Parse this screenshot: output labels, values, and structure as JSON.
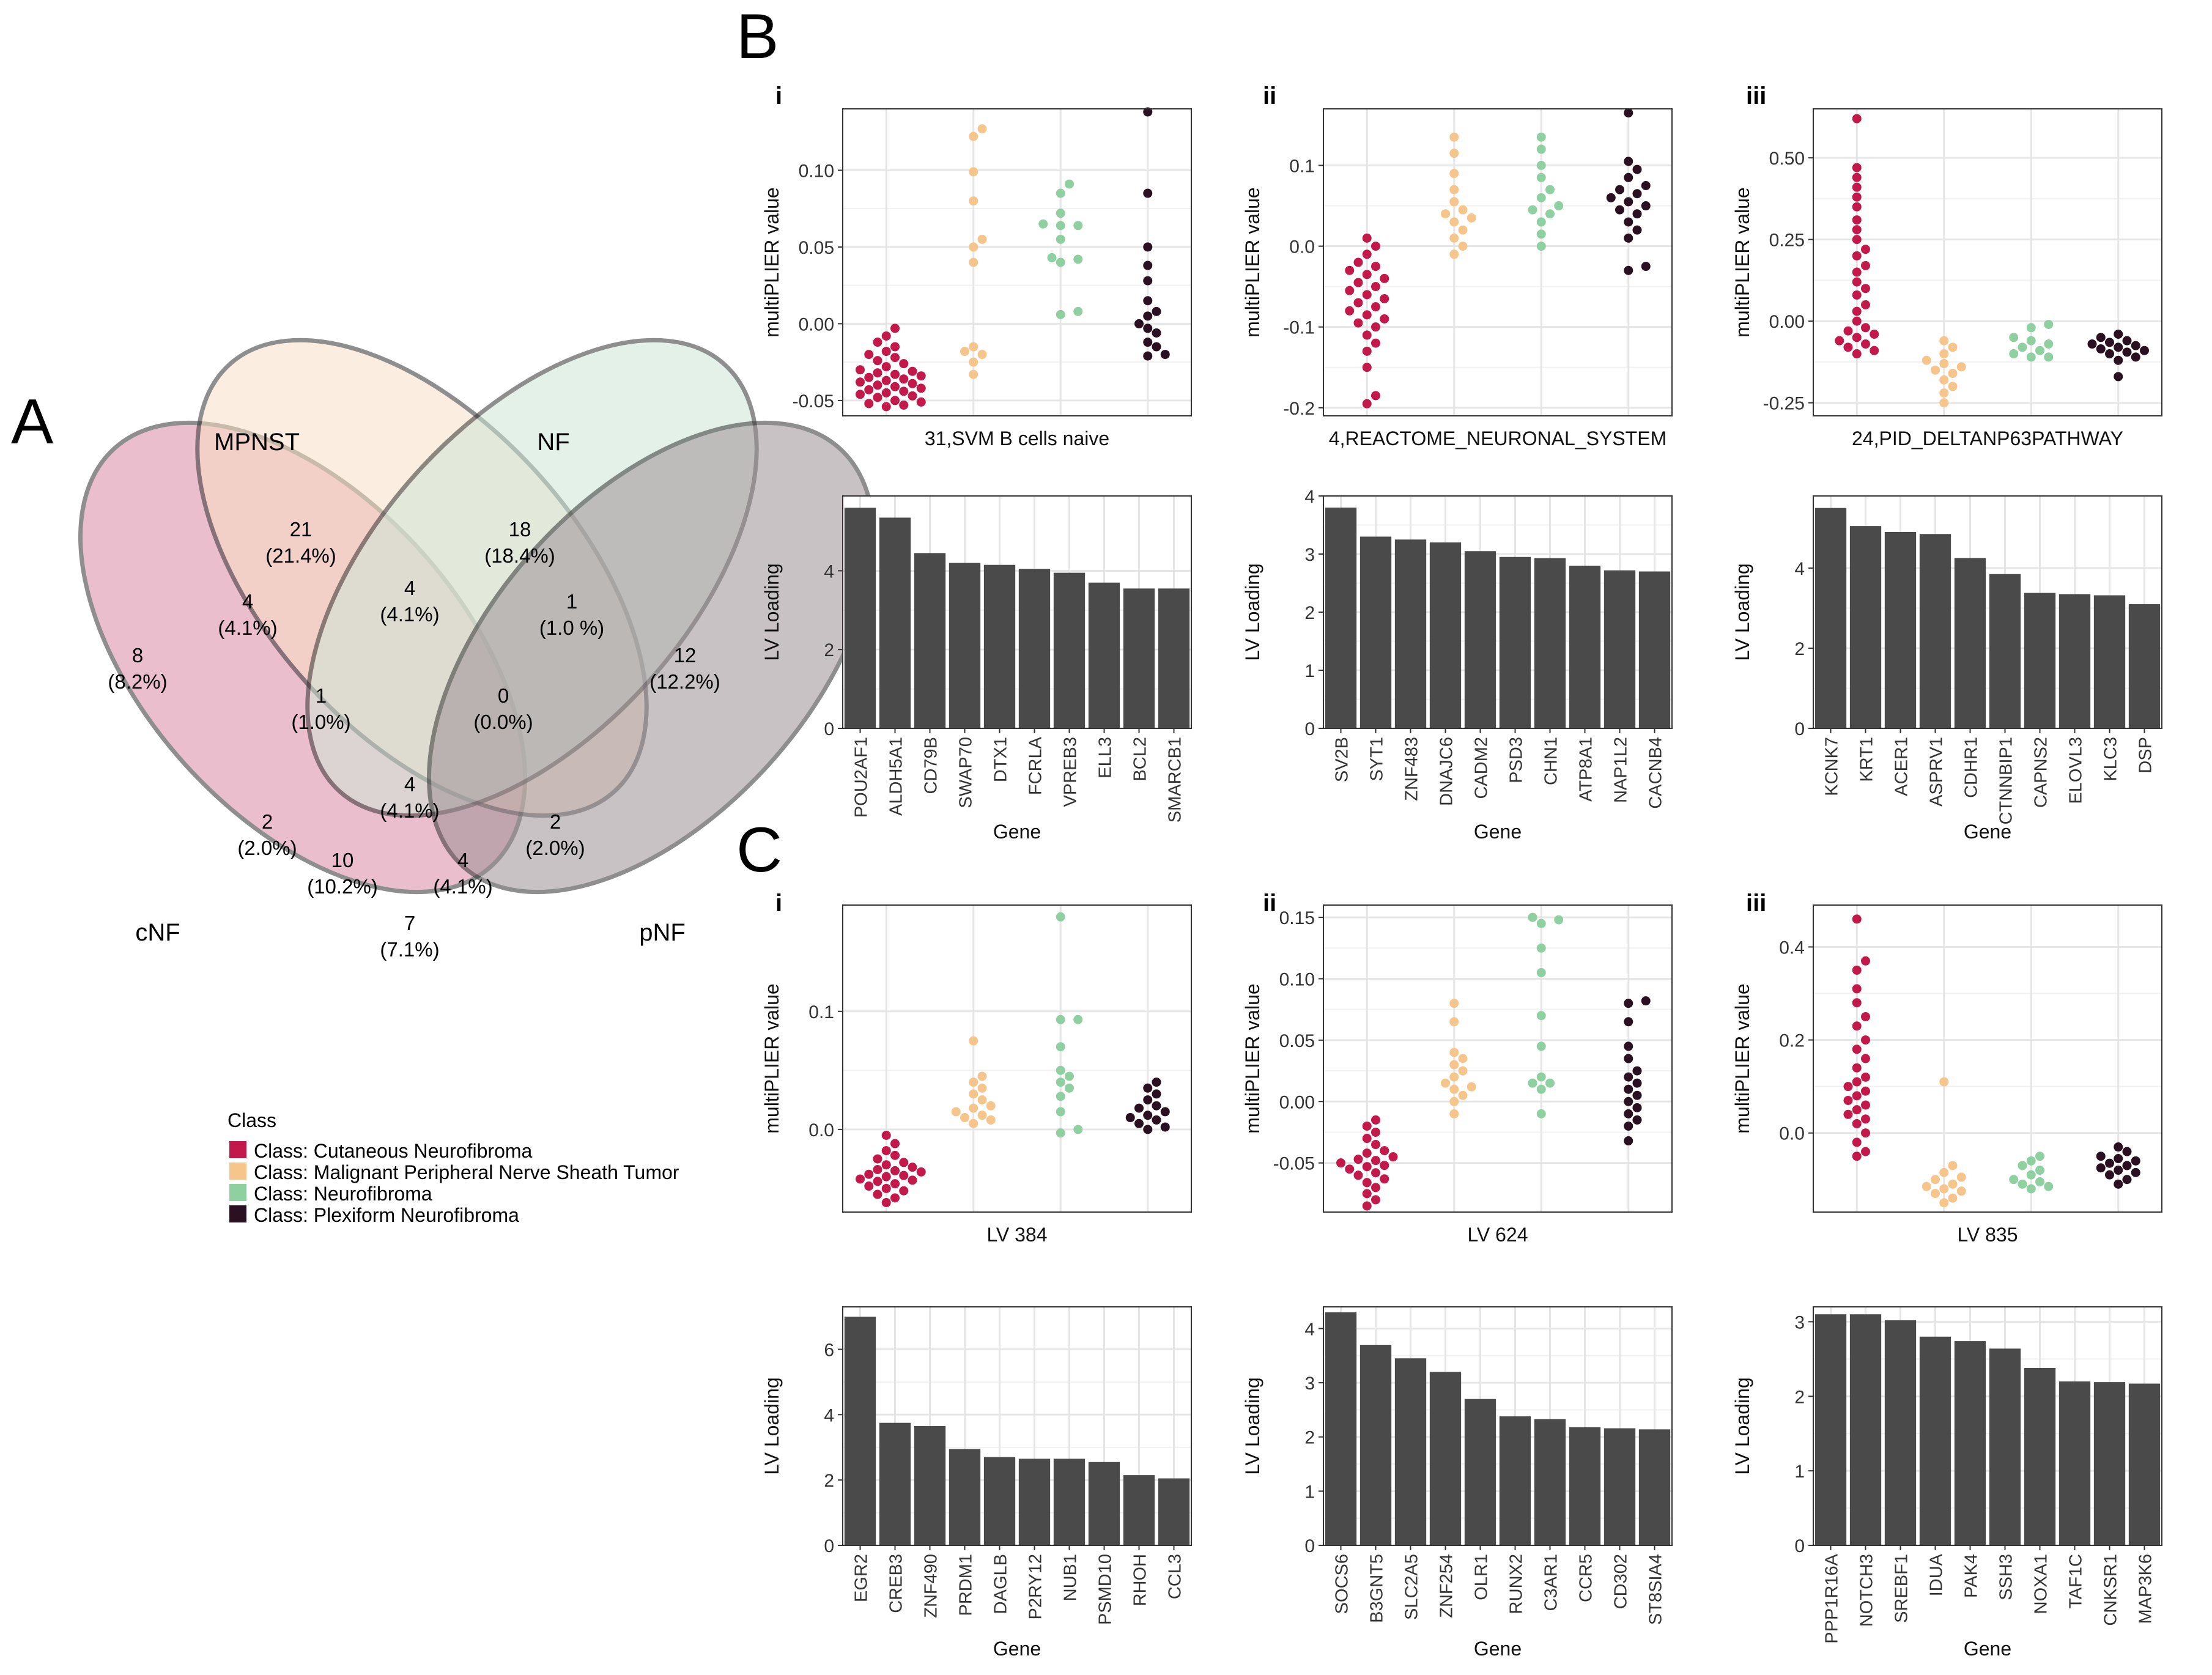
{
  "panel_letters": {
    "a": "A",
    "b": "B",
    "c": "C"
  },
  "sub_labels": [
    "i",
    "ii",
    "iii"
  ],
  "colors": {
    "cNF": "#c2184a",
    "MPNST": "#f6c58b",
    "NF": "#8fd0a0",
    "pNF": "#2a1020",
    "bar": "#4a4a4a",
    "grid": "#e6e6e6",
    "venn_cNF": "#d98aa3",
    "venn_MPNST": "#f9e0c6",
    "venn_NF": "#cfe6d8",
    "venn_pNF": "#9e9197"
  },
  "venn": {
    "sets": {
      "mpnst": "MPNST",
      "nf": "NF",
      "cnf": "cNF",
      "pnf": "pNF"
    },
    "regions": [
      {
        "count": "21",
        "pct": "(21.4%)"
      },
      {
        "count": "18",
        "pct": "(18.4%)"
      },
      {
        "count": "4",
        "pct": "(4.1%)"
      },
      {
        "count": "4",
        "pct": "(4.1%)"
      },
      {
        "count": "1",
        "pct": "(1.0 %)"
      },
      {
        "count": "8",
        "pct": "(8.2%)"
      },
      {
        "count": "12",
        "pct": "(12.2%)"
      },
      {
        "count": "1",
        "pct": "(1.0%)"
      },
      {
        "count": "0",
        "pct": "(0.0%)"
      },
      {
        "count": "4",
        "pct": "(4.1%)"
      },
      {
        "count": "2",
        "pct": "(2.0%)"
      },
      {
        "count": "2",
        "pct": "(2.0%)"
      },
      {
        "count": "10",
        "pct": "(10.2%)"
      },
      {
        "count": "4",
        "pct": "(4.1%)"
      },
      {
        "count": "7",
        "pct": "(7.1%)"
      }
    ]
  },
  "legend": {
    "title": "Class",
    "items": [
      "Class: Cutaneous Neurofibroma",
      "Class: Malignant Peripheral Nerve Sheath Tumor",
      "Class: Neurofibroma",
      "Class: Plexiform Neurofibroma"
    ]
  },
  "chart_data": [
    {
      "id": "B-i-swarm",
      "type": "scatter",
      "panel": "B",
      "sub": "i",
      "title": "",
      "xlabel": "31,SVM B cells naive",
      "ylabel": "multiPLIER value",
      "ylim": [
        -0.06,
        0.14
      ],
      "yticks": [
        -0.05,
        0.0,
        0.05,
        0.1
      ],
      "ytick_labels": [
        "-0.05",
        "0.00",
        "0.05",
        "0.10"
      ],
      "groups": [
        {
          "name": "Cutaneous Neurofibroma",
          "values": [
            -0.003,
            -0.008,
            -0.012,
            -0.015,
            -0.018,
            -0.02,
            -0.022,
            -0.024,
            -0.026,
            -0.028,
            -0.03,
            -0.031,
            -0.032,
            -0.033,
            -0.034,
            -0.035,
            -0.036,
            -0.037,
            -0.038,
            -0.039,
            -0.04,
            -0.041,
            -0.042,
            -0.043,
            -0.044,
            -0.045,
            -0.046,
            -0.047,
            -0.048,
            -0.05,
            -0.051,
            -0.052,
            -0.053,
            -0.054
          ]
        },
        {
          "name": "Malignant Peripheral Nerve Sheath Tumor",
          "values": [
            0.127,
            0.122,
            0.099,
            0.08,
            0.055,
            0.05,
            0.04,
            -0.015,
            -0.018,
            -0.02,
            -0.025,
            -0.033
          ]
        },
        {
          "name": "Neurofibroma",
          "values": [
            0.091,
            0.085,
            0.072,
            0.065,
            0.064,
            0.064,
            0.055,
            0.043,
            0.042,
            0.04,
            0.008,
            0.006
          ]
        },
        {
          "name": "Plexiform Neurofibroma",
          "values": [
            0.138,
            0.085,
            0.05,
            0.038,
            0.028,
            0.015,
            0.008,
            0.005,
            0.0,
            -0.003,
            -0.006,
            -0.012,
            -0.015,
            -0.02,
            -0.021
          ]
        }
      ]
    },
    {
      "id": "B-ii-swarm",
      "type": "scatter",
      "panel": "B",
      "sub": "ii",
      "title": "",
      "xlabel": "4,REACTOME_NEURONAL_SYSTEM",
      "ylabel": "multiPLIER value",
      "ylim": [
        -0.21,
        0.17
      ],
      "yticks": [
        -0.2,
        -0.1,
        0.0,
        0.1
      ],
      "ytick_labels": [
        "-0.2",
        "-0.1",
        "0.0",
        "0.1"
      ],
      "groups": [
        {
          "name": "Cutaneous Neurofibroma",
          "values": [
            0.01,
            0.0,
            -0.01,
            -0.02,
            -0.025,
            -0.03,
            -0.035,
            -0.04,
            -0.045,
            -0.05,
            -0.055,
            -0.06,
            -0.065,
            -0.07,
            -0.075,
            -0.08,
            -0.085,
            -0.09,
            -0.095,
            -0.1,
            -0.11,
            -0.12,
            -0.13,
            -0.15,
            -0.185,
            -0.195
          ]
        },
        {
          "name": "Malignant Peripheral Nerve Sheath Tumor",
          "values": [
            0.135,
            0.115,
            0.09,
            0.07,
            0.055,
            0.045,
            0.04,
            0.035,
            0.03,
            0.02,
            0.01,
            0.0,
            -0.01
          ]
        },
        {
          "name": "Neurofibroma",
          "values": [
            0.135,
            0.12,
            0.1,
            0.085,
            0.07,
            0.06,
            0.05,
            0.045,
            0.04,
            0.03,
            0.015,
            0.0
          ]
        },
        {
          "name": "Plexiform Neurofibroma",
          "values": [
            0.165,
            0.105,
            0.095,
            0.085,
            0.075,
            0.07,
            0.065,
            0.06,
            0.055,
            0.05,
            0.045,
            0.04,
            0.03,
            0.02,
            0.01,
            -0.025,
            -0.03
          ]
        }
      ]
    },
    {
      "id": "B-iii-swarm",
      "type": "scatter",
      "panel": "B",
      "sub": "iii",
      "title": "",
      "xlabel": "24,PID_DELTANP63PATHWAY",
      "ylabel": "multiPLIER value",
      "ylim": [
        -0.29,
        0.65
      ],
      "yticks": [
        -0.25,
        0.0,
        0.25,
        0.5
      ],
      "ytick_labels": [
        "-0.25",
        "0.00",
        "0.25",
        "0.50"
      ],
      "groups": [
        {
          "name": "Cutaneous Neurofibroma",
          "values": [
            0.62,
            0.47,
            0.44,
            0.41,
            0.38,
            0.35,
            0.31,
            0.28,
            0.25,
            0.22,
            0.2,
            0.17,
            0.15,
            0.12,
            0.1,
            0.08,
            0.05,
            0.03,
            0.0,
            -0.02,
            -0.04,
            -0.06,
            -0.08,
            -0.09,
            -0.1,
            -0.03,
            -0.05,
            -0.07
          ]
        },
        {
          "name": "Malignant Peripheral Nerve Sheath Tumor",
          "values": [
            -0.06,
            -0.08,
            -0.1,
            -0.12,
            -0.13,
            -0.14,
            -0.15,
            -0.16,
            -0.18,
            -0.2,
            -0.22,
            -0.25
          ]
        },
        {
          "name": "Neurofibroma",
          "values": [
            -0.01,
            -0.02,
            -0.05,
            -0.06,
            -0.07,
            -0.08,
            -0.09,
            -0.1,
            -0.11,
            -0.11
          ]
        },
        {
          "name": "Plexiform Neurofibroma",
          "values": [
            -0.04,
            -0.05,
            -0.06,
            -0.065,
            -0.07,
            -0.075,
            -0.08,
            -0.085,
            -0.09,
            -0.095,
            -0.1,
            -0.11,
            -0.12,
            -0.17
          ]
        }
      ]
    },
    {
      "id": "B-i-bar",
      "type": "bar",
      "panel": "B",
      "sub": "i",
      "xlabel": "Gene",
      "ylabel": "LV Loading",
      "ylim": [
        0,
        5.9
      ],
      "yticks": [
        0,
        2,
        4
      ],
      "ytick_labels": [
        "0",
        "2",
        "4"
      ],
      "categories": [
        "POU2AF1",
        "ALDH5A1",
        "CD79B",
        "SWAP70",
        "DTX1",
        "FCRLA",
        "VPREB3",
        "ELL3",
        "BCL2",
        "SMARCB1"
      ],
      "values": [
        5.6,
        5.35,
        4.45,
        4.2,
        4.15,
        4.05,
        3.95,
        3.7,
        3.55,
        3.55
      ]
    },
    {
      "id": "B-ii-bar",
      "type": "bar",
      "panel": "B",
      "sub": "ii",
      "xlabel": "Gene",
      "ylabel": "LV Loading",
      "ylim": [
        0,
        4
      ],
      "yticks": [
        0,
        1,
        2,
        3,
        4
      ],
      "ytick_labels": [
        "0",
        "1",
        "2",
        "3",
        "4"
      ],
      "categories": [
        "SV2B",
        "SYT1",
        "ZNF483",
        "DNAJC6",
        "CADM2",
        "PSD3",
        "CHN1",
        "ATP8A1",
        "NAP1L2",
        "CACNB4"
      ],
      "values": [
        3.8,
        3.3,
        3.25,
        3.2,
        3.05,
        2.95,
        2.93,
        2.8,
        2.72,
        2.7
      ]
    },
    {
      "id": "B-iii-bar",
      "type": "bar",
      "panel": "B",
      "sub": "iii",
      "xlabel": "Gene",
      "ylabel": "LV Loading",
      "ylim": [
        0,
        5.8
      ],
      "yticks": [
        0,
        2,
        4
      ],
      "ytick_labels": [
        "0",
        "2",
        "4"
      ],
      "categories": [
        "KCNK7",
        "KRT1",
        "ACER1",
        "ASPRV1",
        "CDHR1",
        "CTNNBIP1",
        "CAPNS2",
        "ELOVL3",
        "KLC3",
        "DSP"
      ],
      "values": [
        5.5,
        5.05,
        4.9,
        4.85,
        4.25,
        3.85,
        3.38,
        3.35,
        3.32,
        3.1
      ]
    },
    {
      "id": "C-i-swarm",
      "type": "scatter",
      "panel": "C",
      "sub": "i",
      "title": "",
      "xlabel": "LV 384",
      "ylabel": "multiPLIER value",
      "ylim": [
        -0.07,
        0.19
      ],
      "yticks": [
        0.0,
        0.1
      ],
      "ytick_labels": [
        "0.0",
        "0.1"
      ],
      "groups": [
        {
          "name": "Cutaneous Neurofibroma",
          "values": [
            -0.005,
            -0.012,
            -0.018,
            -0.022,
            -0.025,
            -0.028,
            -0.03,
            -0.032,
            -0.034,
            -0.036,
            -0.038,
            -0.04,
            -0.042,
            -0.044,
            -0.046,
            -0.048,
            -0.05,
            -0.052,
            -0.055,
            -0.058,
            -0.062,
            -0.035,
            -0.039,
            -0.043
          ]
        },
        {
          "name": "Malignant Peripheral Nerve Sheath Tumor",
          "values": [
            0.075,
            0.045,
            0.04,
            0.035,
            0.03,
            0.025,
            0.02,
            0.018,
            0.015,
            0.012,
            0.01,
            0.008,
            0.005
          ]
        },
        {
          "name": "Neurofibroma",
          "values": [
            0.18,
            0.093,
            0.093,
            0.07,
            0.05,
            0.045,
            0.04,
            0.035,
            0.028,
            0.015,
            0.0,
            -0.003
          ]
        },
        {
          "name": "Plexiform Neurofibroma",
          "values": [
            0.04,
            0.035,
            0.03,
            0.025,
            0.02,
            0.018,
            0.015,
            0.012,
            0.01,
            0.008,
            0.005,
            0.002,
            0.0
          ]
        }
      ]
    },
    {
      "id": "C-ii-swarm",
      "type": "scatter",
      "panel": "C",
      "sub": "ii",
      "title": "",
      "xlabel": "LV 624",
      "ylabel": "multiPLIER value",
      "ylim": [
        -0.09,
        0.16
      ],
      "yticks": [
        -0.05,
        0.0,
        0.05,
        0.1,
        0.15
      ],
      "ytick_labels": [
        "-0.05",
        "0.00",
        "0.05",
        "0.10",
        "0.15"
      ],
      "groups": [
        {
          "name": "Cutaneous Neurofibroma",
          "values": [
            -0.015,
            -0.02,
            -0.025,
            -0.03,
            -0.035,
            -0.04,
            -0.042,
            -0.045,
            -0.048,
            -0.05,
            -0.052,
            -0.055,
            -0.058,
            -0.06,
            -0.063,
            -0.066,
            -0.07,
            -0.075,
            -0.08,
            -0.085,
            -0.047,
            -0.053
          ]
        },
        {
          "name": "Malignant Peripheral Nerve Sheath Tumor",
          "values": [
            0.08,
            0.065,
            0.04,
            0.035,
            0.03,
            0.025,
            0.02,
            0.015,
            0.012,
            0.01,
            0.005,
            0.0,
            -0.01
          ]
        },
        {
          "name": "Neurofibroma",
          "values": [
            0.15,
            0.148,
            0.145,
            0.125,
            0.105,
            0.07,
            0.045,
            0.02,
            0.015,
            0.015,
            0.01,
            -0.01
          ]
        },
        {
          "name": "Plexiform Neurofibroma",
          "values": [
            0.082,
            0.08,
            0.065,
            0.045,
            0.035,
            0.025,
            0.02,
            0.015,
            0.01,
            0.005,
            0.0,
            -0.005,
            -0.01,
            -0.015,
            -0.02,
            -0.032
          ]
        }
      ]
    },
    {
      "id": "C-iii-swarm",
      "type": "scatter",
      "panel": "C",
      "sub": "iii",
      "title": "",
      "xlabel": "LV 835",
      "ylabel": "multiPLIER value",
      "ylim": [
        -0.17,
        0.49
      ],
      "yticks": [
        0.0,
        0.2,
        0.4
      ],
      "ytick_labels": [
        "0.0",
        "0.2",
        "0.4"
      ],
      "groups": [
        {
          "name": "Cutaneous Neurofibroma",
          "values": [
            0.46,
            0.37,
            0.35,
            0.31,
            0.28,
            0.25,
            0.23,
            0.2,
            0.18,
            0.16,
            0.14,
            0.12,
            0.11,
            0.1,
            0.09,
            0.08,
            0.07,
            0.06,
            0.05,
            0.04,
            0.03,
            0.02,
            0.0,
            -0.02,
            -0.04,
            -0.05
          ]
        },
        {
          "name": "Malignant Peripheral Nerve Sheath Tumor",
          "values": [
            0.11,
            -0.07,
            -0.085,
            -0.095,
            -0.1,
            -0.11,
            -0.115,
            -0.12,
            -0.125,
            -0.13,
            -0.14,
            -0.15
          ]
        },
        {
          "name": "Neurofibroma",
          "values": [
            -0.05,
            -0.06,
            -0.07,
            -0.08,
            -0.09,
            -0.1,
            -0.105,
            -0.11,
            -0.115,
            -0.12
          ]
        },
        {
          "name": "Plexiform Neurofibroma",
          "values": [
            -0.03,
            -0.04,
            -0.05,
            -0.055,
            -0.06,
            -0.065,
            -0.07,
            -0.075,
            -0.08,
            -0.085,
            -0.09,
            -0.1,
            -0.11
          ]
        }
      ]
    },
    {
      "id": "C-i-bar",
      "type": "bar",
      "panel": "C",
      "sub": "i",
      "xlabel": "Gene",
      "ylabel": "LV Loading",
      "ylim": [
        0,
        7.3
      ],
      "yticks": [
        0,
        2,
        4,
        6
      ],
      "ytick_labels": [
        "0",
        "2",
        "4",
        "6"
      ],
      "categories": [
        "EGR2",
        "CREB3",
        "ZNF490",
        "PRDM1",
        "DAGLB",
        "P2RY12",
        "NUB1",
        "PSMD10",
        "RHOH",
        "CCL3"
      ],
      "values": [
        7.0,
        3.75,
        3.65,
        2.95,
        2.7,
        2.65,
        2.65,
        2.55,
        2.15,
        2.05
      ]
    },
    {
      "id": "C-ii-bar",
      "type": "bar",
      "panel": "C",
      "sub": "ii",
      "xlabel": "Gene",
      "ylabel": "LV Loading",
      "ylim": [
        0,
        4.4
      ],
      "yticks": [
        0,
        1,
        2,
        3,
        4
      ],
      "ytick_labels": [
        "0",
        "1",
        "2",
        "3",
        "4"
      ],
      "categories": [
        "SOCS6",
        "B3GNT5",
        "SLC2A5",
        "ZNF254",
        "OLR1",
        "RUNX2",
        "C3AR1",
        "CCR5",
        "CD302",
        "ST8SIA4"
      ],
      "values": [
        4.3,
        3.7,
        3.45,
        3.2,
        2.7,
        2.38,
        2.33,
        2.18,
        2.16,
        2.14
      ]
    },
    {
      "id": "C-iii-bar",
      "type": "bar",
      "panel": "C",
      "sub": "iii",
      "xlabel": "Gene",
      "ylabel": "LV Loading",
      "ylim": [
        0,
        3.2
      ],
      "yticks": [
        0,
        1,
        2,
        3
      ],
      "ytick_labels": [
        "0",
        "1",
        "2",
        "3"
      ],
      "categories": [
        "PPP1R16A",
        "NOTCH3",
        "SREBF1",
        "IDUA",
        "PAK4",
        "SSH3",
        "NOXA1",
        "TAF1C",
        "CNKSR1",
        "MAP3K6"
      ],
      "values": [
        3.1,
        3.1,
        3.02,
        2.8,
        2.74,
        2.64,
        2.38,
        2.2,
        2.19,
        2.17
      ]
    }
  ]
}
